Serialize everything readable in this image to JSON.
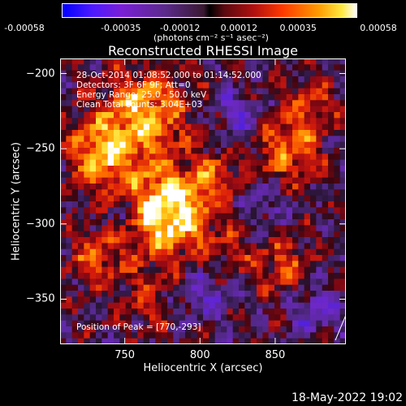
{
  "colorbar": {
    "ticks": [
      "-0.00058",
      "-0.00035",
      "-0.00012",
      "0.00012",
      "0.00035",
      "0.00058"
    ],
    "unit": "(photons cm⁻² s⁻¹ asec⁻²)"
  },
  "info": {
    "time": "28-Oct-2014 01:08:52.000 to 01:14:52.000",
    "detectors": "Detectors: 3F 6F 9F; Att=0",
    "energy": "Energy Range: 25.0 - 50.0 keV",
    "clean": "Clean     Total counts: 3.04E+03",
    "peak": "Position of Peak = [770,-293]"
  },
  "footer": "18-May-2022 19:02",
  "chart_data": {
    "type": "heatmap",
    "title": "Reconstructed RHESSI Image",
    "xlabel": "Heliocentric X (arcsec)",
    "ylabel": "Heliocentric Y (arcsec)",
    "xlim": [
      707,
      897
    ],
    "ylim": [
      -380,
      -190
    ],
    "xticks": [
      750,
      800,
      850
    ],
    "yticks": [
      -200,
      -250,
      -300,
      -350
    ],
    "colorbar_range": [
      -0.00058,
      0.00058
    ],
    "peak": [
      770,
      -293
    ]
  }
}
